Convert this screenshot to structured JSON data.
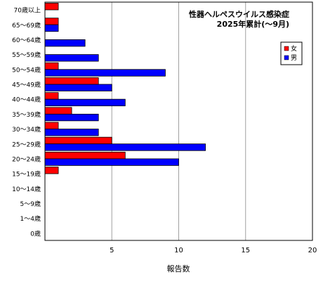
{
  "chart_data": {
    "type": "bar",
    "orientation": "horizontal",
    "title": "性器ヘルペスウイルス感染症",
    "subtitle": "2025年累計(～9月)",
    "xlabel": "報告数",
    "ylabel": "",
    "xlim": [
      0,
      20
    ],
    "xticks": [
      5,
      10,
      15,
      20
    ],
    "grid": true,
    "legend_position": "top-right",
    "categories": [
      "70歳以上",
      "65～69歳",
      "60～64歳",
      "55～59歳",
      "50～54歳",
      "45～49歳",
      "40～44歳",
      "35～39歳",
      "30～34歳",
      "25～29歳",
      "20～24歳",
      "15～19歳",
      "10～14歳",
      "5～9歳",
      "1～4歳",
      "0歳"
    ],
    "series": [
      {
        "name": "女",
        "color": "#ff0000",
        "values": [
          1,
          1,
          0,
          0,
          1,
          4,
          1,
          2,
          1,
          5,
          6,
          1,
          0,
          0,
          0,
          0
        ]
      },
      {
        "name": "男",
        "color": "#0000ff",
        "values": [
          0,
          1,
          3,
          4,
          9,
          5,
          6,
          4,
          4,
          12,
          10,
          0,
          0,
          0,
          0,
          0
        ]
      }
    ]
  }
}
